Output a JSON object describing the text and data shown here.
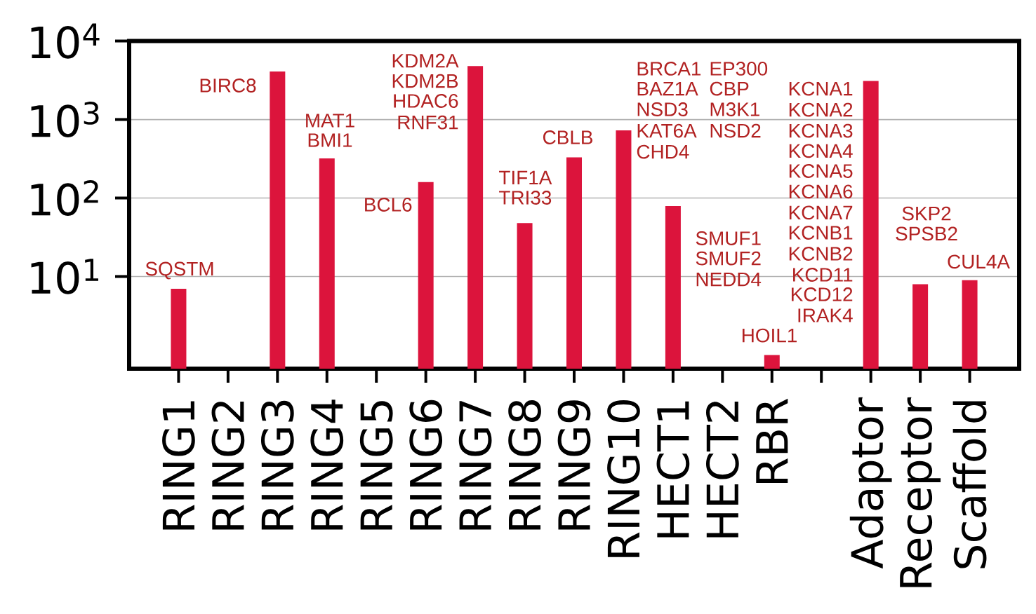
{
  "chart_data": {
    "type": "bar",
    "categories": [
      "RING1",
      "RING2",
      "RING3",
      "RING4",
      "RING5",
      "RING6",
      "RING7",
      "RING8",
      "RING9",
      "RING10",
      "HECT1",
      "HECT2",
      "RBR",
      null,
      "Adaptor",
      "Receptor",
      "Scaffold"
    ],
    "values": [
      7,
      null,
      4100,
      320,
      null,
      160,
      4800,
      48,
      330,
      730,
      79,
      null,
      1,
      null,
      3100,
      8,
      9
    ],
    "color": "#dc143c",
    "log": true,
    "ylim": [
      0.67,
      10000
    ],
    "yticks": [
      {
        "value": 10,
        "label": "10$^{1}$"
      },
      {
        "value": 100,
        "label": "10$^{2}$"
      },
      {
        "value": 1000,
        "label": "10$^{3}$"
      },
      {
        "value": 10000,
        "label": "10$^{4}$"
      }
    ],
    "grid": "y",
    "annotations": [
      "SQSTM",
      "BIRC8",
      "MAT1",
      "BMI1",
      "BCL6",
      "KDM2A",
      "KDM2B",
      "HDAC6",
      "RNF31",
      "TIF1A",
      "TRI33",
      "CBLB",
      "BRCA1",
      "BAZ1A",
      "NSD3",
      "KAT6A",
      "CHD4",
      "EP300",
      "CBP",
      "M3K1",
      "NSD2",
      "SMUF1",
      "SMUF2",
      "NEDD4",
      "HOIL1",
      "KCNA1",
      "KCNA2",
      "KCNA3",
      "KCNA4",
      "KCNA5",
      "KCNA6",
      "KCNA7",
      "KCNB1",
      "KCNB2",
      "KCD11",
      "KCD12",
      "IRAK4",
      "SKP2",
      "SPSB2",
      "CUL4A"
    ]
  }
}
